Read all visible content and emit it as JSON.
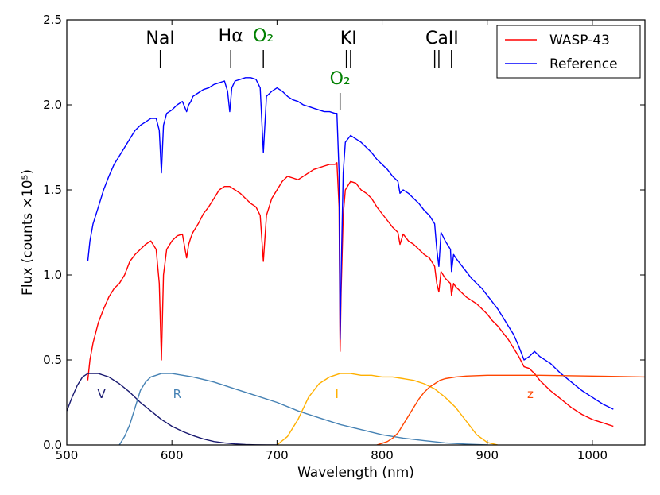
{
  "chart_data": {
    "type": "line",
    "xlabel": "Wavelength (nm)",
    "ylabel": "Flux (counts ×10⁵)",
    "xlim": [
      500,
      1050
    ],
    "ylim": [
      0.0,
      2.5
    ],
    "xticks": [
      "500",
      "600",
      "700",
      "800",
      "900",
      "1000"
    ],
    "yticks": [
      "0.0",
      "0.5",
      "1.0",
      "1.5",
      "2.0",
      "2.5"
    ],
    "grid": false,
    "legend_position": "top-right",
    "series": [
      {
        "name": "WASP-43",
        "color": "#ff0000",
        "x": [
          520,
          522,
          525,
          530,
          535,
          540,
          545,
          550,
          555,
          560,
          565,
          570,
          575,
          580,
          585,
          588,
          590,
          592,
          595,
          600,
          605,
          610,
          614,
          616,
          618,
          620,
          625,
          630,
          635,
          640,
          645,
          650,
          655,
          660,
          665,
          670,
          675,
          680,
          684,
          687,
          690,
          695,
          700,
          705,
          710,
          715,
          720,
          725,
          730,
          735,
          740,
          745,
          750,
          755,
          757,
          759,
          760,
          761,
          763,
          765,
          770,
          775,
          780,
          785,
          790,
          795,
          800,
          805,
          810,
          815,
          817,
          820,
          825,
          830,
          835,
          840,
          845,
          850,
          852,
          854,
          856,
          860,
          865,
          866,
          868,
          870,
          875,
          880,
          885,
          890,
          895,
          900,
          905,
          910,
          915,
          920,
          925,
          930,
          935,
          940,
          945,
          950,
          960,
          970,
          980,
          990,
          1000,
          1010,
          1020
        ],
        "y": [
          0.38,
          0.5,
          0.6,
          0.72,
          0.8,
          0.87,
          0.92,
          0.95,
          1.0,
          1.08,
          1.12,
          1.15,
          1.18,
          1.2,
          1.15,
          0.95,
          0.5,
          1.0,
          1.15,
          1.2,
          1.23,
          1.24,
          1.1,
          1.18,
          1.22,
          1.25,
          1.3,
          1.36,
          1.4,
          1.45,
          1.5,
          1.52,
          1.52,
          1.5,
          1.48,
          1.45,
          1.42,
          1.4,
          1.35,
          1.08,
          1.35,
          1.45,
          1.5,
          1.55,
          1.58,
          1.57,
          1.56,
          1.58,
          1.6,
          1.62,
          1.63,
          1.64,
          1.65,
          1.65,
          1.66,
          1.4,
          0.55,
          0.9,
          1.35,
          1.5,
          1.55,
          1.54,
          1.5,
          1.48,
          1.45,
          1.4,
          1.36,
          1.32,
          1.28,
          1.25,
          1.18,
          1.24,
          1.2,
          1.18,
          1.15,
          1.12,
          1.1,
          1.05,
          0.95,
          0.9,
          1.02,
          0.98,
          0.95,
          0.88,
          0.95,
          0.93,
          0.9,
          0.87,
          0.85,
          0.83,
          0.8,
          0.77,
          0.73,
          0.7,
          0.66,
          0.62,
          0.57,
          0.52,
          0.46,
          0.45,
          0.42,
          0.38,
          0.32,
          0.27,
          0.22,
          0.18,
          0.15,
          0.13,
          0.11
        ]
      },
      {
        "name": "Reference",
        "color": "#0000ff",
        "x": [
          520,
          522,
          525,
          530,
          535,
          540,
          545,
          550,
          555,
          560,
          565,
          570,
          575,
          580,
          585,
          588,
          590,
          592,
          595,
          600,
          605,
          610,
          614,
          616,
          618,
          620,
          625,
          630,
          635,
          640,
          645,
          650,
          653,
          655,
          657,
          660,
          665,
          670,
          675,
          680,
          684,
          687,
          690,
          695,
          700,
          705,
          710,
          715,
          720,
          725,
          730,
          735,
          740,
          745,
          750,
          755,
          757,
          759,
          760,
          761,
          763,
          765,
          770,
          775,
          780,
          785,
          790,
          795,
          800,
          805,
          810,
          815,
          817,
          820,
          825,
          830,
          835,
          840,
          845,
          850,
          852,
          854,
          856,
          860,
          865,
          866,
          868,
          870,
          875,
          880,
          885,
          890,
          895,
          900,
          905,
          910,
          915,
          920,
          925,
          930,
          935,
          940,
          945,
          950,
          960,
          970,
          980,
          990,
          1000,
          1010,
          1020
        ],
        "y": [
          1.08,
          1.2,
          1.3,
          1.4,
          1.5,
          1.58,
          1.65,
          1.7,
          1.75,
          1.8,
          1.85,
          1.88,
          1.9,
          1.92,
          1.92,
          1.85,
          1.6,
          1.88,
          1.95,
          1.97,
          2.0,
          2.02,
          1.96,
          2.0,
          2.02,
          2.05,
          2.07,
          2.09,
          2.1,
          2.12,
          2.13,
          2.14,
          2.08,
          1.96,
          2.1,
          2.14,
          2.15,
          2.16,
          2.16,
          2.15,
          2.1,
          1.72,
          2.05,
          2.08,
          2.1,
          2.08,
          2.05,
          2.03,
          2.02,
          2.0,
          1.99,
          1.98,
          1.97,
          1.96,
          1.96,
          1.95,
          1.95,
          1.6,
          0.62,
          1.0,
          1.6,
          1.78,
          1.82,
          1.8,
          1.78,
          1.75,
          1.72,
          1.68,
          1.65,
          1.62,
          1.58,
          1.55,
          1.48,
          1.5,
          1.48,
          1.45,
          1.42,
          1.38,
          1.35,
          1.3,
          1.15,
          1.05,
          1.25,
          1.2,
          1.15,
          1.02,
          1.12,
          1.1,
          1.06,
          1.02,
          0.98,
          0.95,
          0.92,
          0.88,
          0.84,
          0.8,
          0.75,
          0.7,
          0.65,
          0.58,
          0.5,
          0.52,
          0.55,
          0.52,
          0.48,
          0.42,
          0.37,
          0.32,
          0.28,
          0.24,
          0.21
        ]
      },
      {
        "name": "V",
        "color": "#191970",
        "x": [
          500,
          505,
          510,
          515,
          520,
          525,
          530,
          540,
          550,
          560,
          570,
          580,
          590,
          600,
          610,
          620,
          630,
          640,
          650,
          660,
          670,
          680,
          690,
          700
        ],
        "y": [
          0.2,
          0.28,
          0.35,
          0.4,
          0.42,
          0.42,
          0.42,
          0.4,
          0.36,
          0.31,
          0.25,
          0.2,
          0.15,
          0.11,
          0.08,
          0.055,
          0.035,
          0.02,
          0.012,
          0.006,
          0.003,
          0.001,
          0.0,
          0.0
        ]
      },
      {
        "name": "R",
        "color": "#4682b4",
        "x": [
          550,
          555,
          560,
          565,
          570,
          575,
          580,
          585,
          590,
          600,
          620,
          640,
          660,
          680,
          700,
          720,
          740,
          760,
          780,
          800,
          820,
          840,
          860,
          880,
          900
        ],
        "y": [
          0.0,
          0.05,
          0.12,
          0.22,
          0.32,
          0.37,
          0.4,
          0.41,
          0.42,
          0.42,
          0.4,
          0.37,
          0.33,
          0.29,
          0.25,
          0.2,
          0.16,
          0.12,
          0.09,
          0.06,
          0.04,
          0.025,
          0.012,
          0.005,
          0.0
        ]
      },
      {
        "name": "I",
        "color": "#ffb000",
        "x": [
          700,
          710,
          720,
          730,
          740,
          750,
          760,
          770,
          780,
          790,
          800,
          810,
          820,
          830,
          840,
          850,
          860,
          870,
          880,
          890,
          900,
          910
        ],
        "y": [
          0.0,
          0.05,
          0.15,
          0.28,
          0.36,
          0.4,
          0.42,
          0.42,
          0.41,
          0.41,
          0.4,
          0.4,
          0.39,
          0.38,
          0.36,
          0.33,
          0.28,
          0.22,
          0.14,
          0.06,
          0.015,
          0.0
        ]
      },
      {
        "name": "z",
        "color": "#ff4500",
        "x": [
          795,
          800,
          805,
          810,
          815,
          820,
          825,
          830,
          835,
          840,
          845,
          850,
          855,
          860,
          870,
          880,
          900,
          950,
          1000,
          1050
        ],
        "y": [
          0.0,
          0.01,
          0.02,
          0.04,
          0.07,
          0.12,
          0.17,
          0.22,
          0.27,
          0.31,
          0.34,
          0.36,
          0.38,
          0.39,
          0.4,
          0.405,
          0.41,
          0.41,
          0.405,
          0.4
        ]
      }
    ],
    "line_labels": [
      {
        "text": "NaI",
        "x": 589,
        "color": "#000000",
        "marks": [
          589
        ]
      },
      {
        "text": "Hα",
        "x": 656,
        "color": "#000000",
        "marks": [
          656
        ]
      },
      {
        "text": "O₂",
        "x": 687,
        "color": "#008000",
        "marks": [
          687
        ]
      },
      {
        "text": "KI",
        "x": 768,
        "color": "#000000",
        "marks": [
          766,
          770
        ]
      },
      {
        "text": "O₂",
        "x": 760,
        "color": "#008000",
        "marks": [
          760
        ]
      },
      {
        "text": "CaII",
        "x": 857,
        "color": "#000000",
        "marks": [
          850,
          854,
          866
        ]
      }
    ],
    "band_labels": [
      {
        "text": "V",
        "x": 533,
        "y": 0.3,
        "color": "#191970"
      },
      {
        "text": "R",
        "x": 605,
        "y": 0.3,
        "color": "#4682b4"
      },
      {
        "text": "I",
        "x": 757,
        "y": 0.3,
        "color": "#ffb000"
      },
      {
        "text": "z",
        "x": 941,
        "y": 0.3,
        "color": "#ff4500"
      }
    ],
    "legend": [
      {
        "name": "WASP-43",
        "color": "#ff0000"
      },
      {
        "name": "Reference",
        "color": "#0000ff"
      }
    ]
  }
}
